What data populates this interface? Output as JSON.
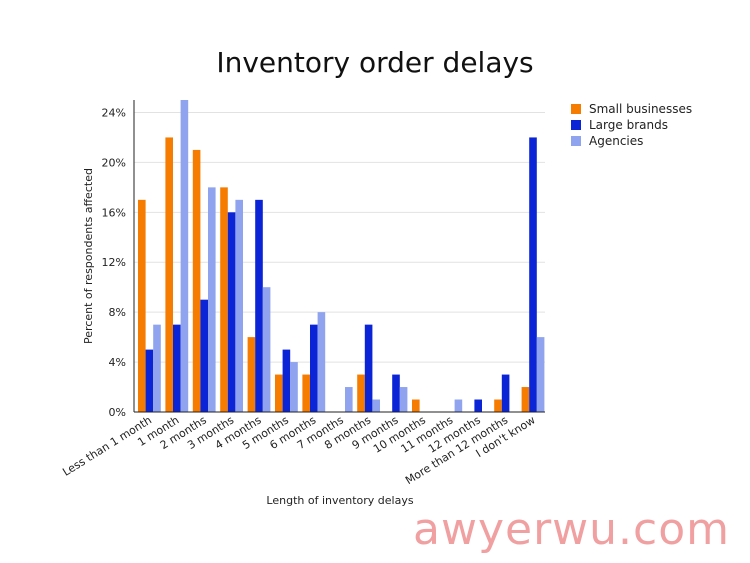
{
  "chart_data": {
    "type": "bar",
    "title": "Inventory order delays",
    "xlabel": "Length of inventory delays",
    "ylabel": "Percent of respondents affected",
    "ylim": [
      0,
      25
    ],
    "yticks": [
      "0%",
      "4%",
      "8%",
      "12%",
      "16%",
      "20%",
      "24%"
    ],
    "grid": true,
    "legend_position": "top-right",
    "categories": [
      "Less than 1 month",
      "1 month",
      "2 months",
      "3 months",
      "4 months",
      "5 months",
      "6 months",
      "7 months",
      "8 months",
      "9 months",
      "10 months",
      "11 months",
      "12 months",
      "More than 12 months",
      "I don't know"
    ],
    "series": [
      {
        "name": "Small businesses",
        "color": "#f57c00",
        "values": [
          17,
          22,
          21,
          18,
          6,
          3,
          3,
          0,
          3,
          0,
          1,
          0,
          0,
          1,
          2
        ]
      },
      {
        "name": "Large brands",
        "color": "#0b24d6",
        "values": [
          5,
          7,
          9,
          16,
          17,
          5,
          7,
          0,
          7,
          3,
          0,
          0,
          1,
          3,
          22
        ]
      },
      {
        "name": "Agencies",
        "color": "#8fa3ee",
        "values": [
          7,
          25,
          18,
          17,
          10,
          4,
          8,
          2,
          1,
          2,
          0,
          1,
          0,
          0,
          6
        ]
      }
    ]
  },
  "watermark": "awyerwu.com"
}
